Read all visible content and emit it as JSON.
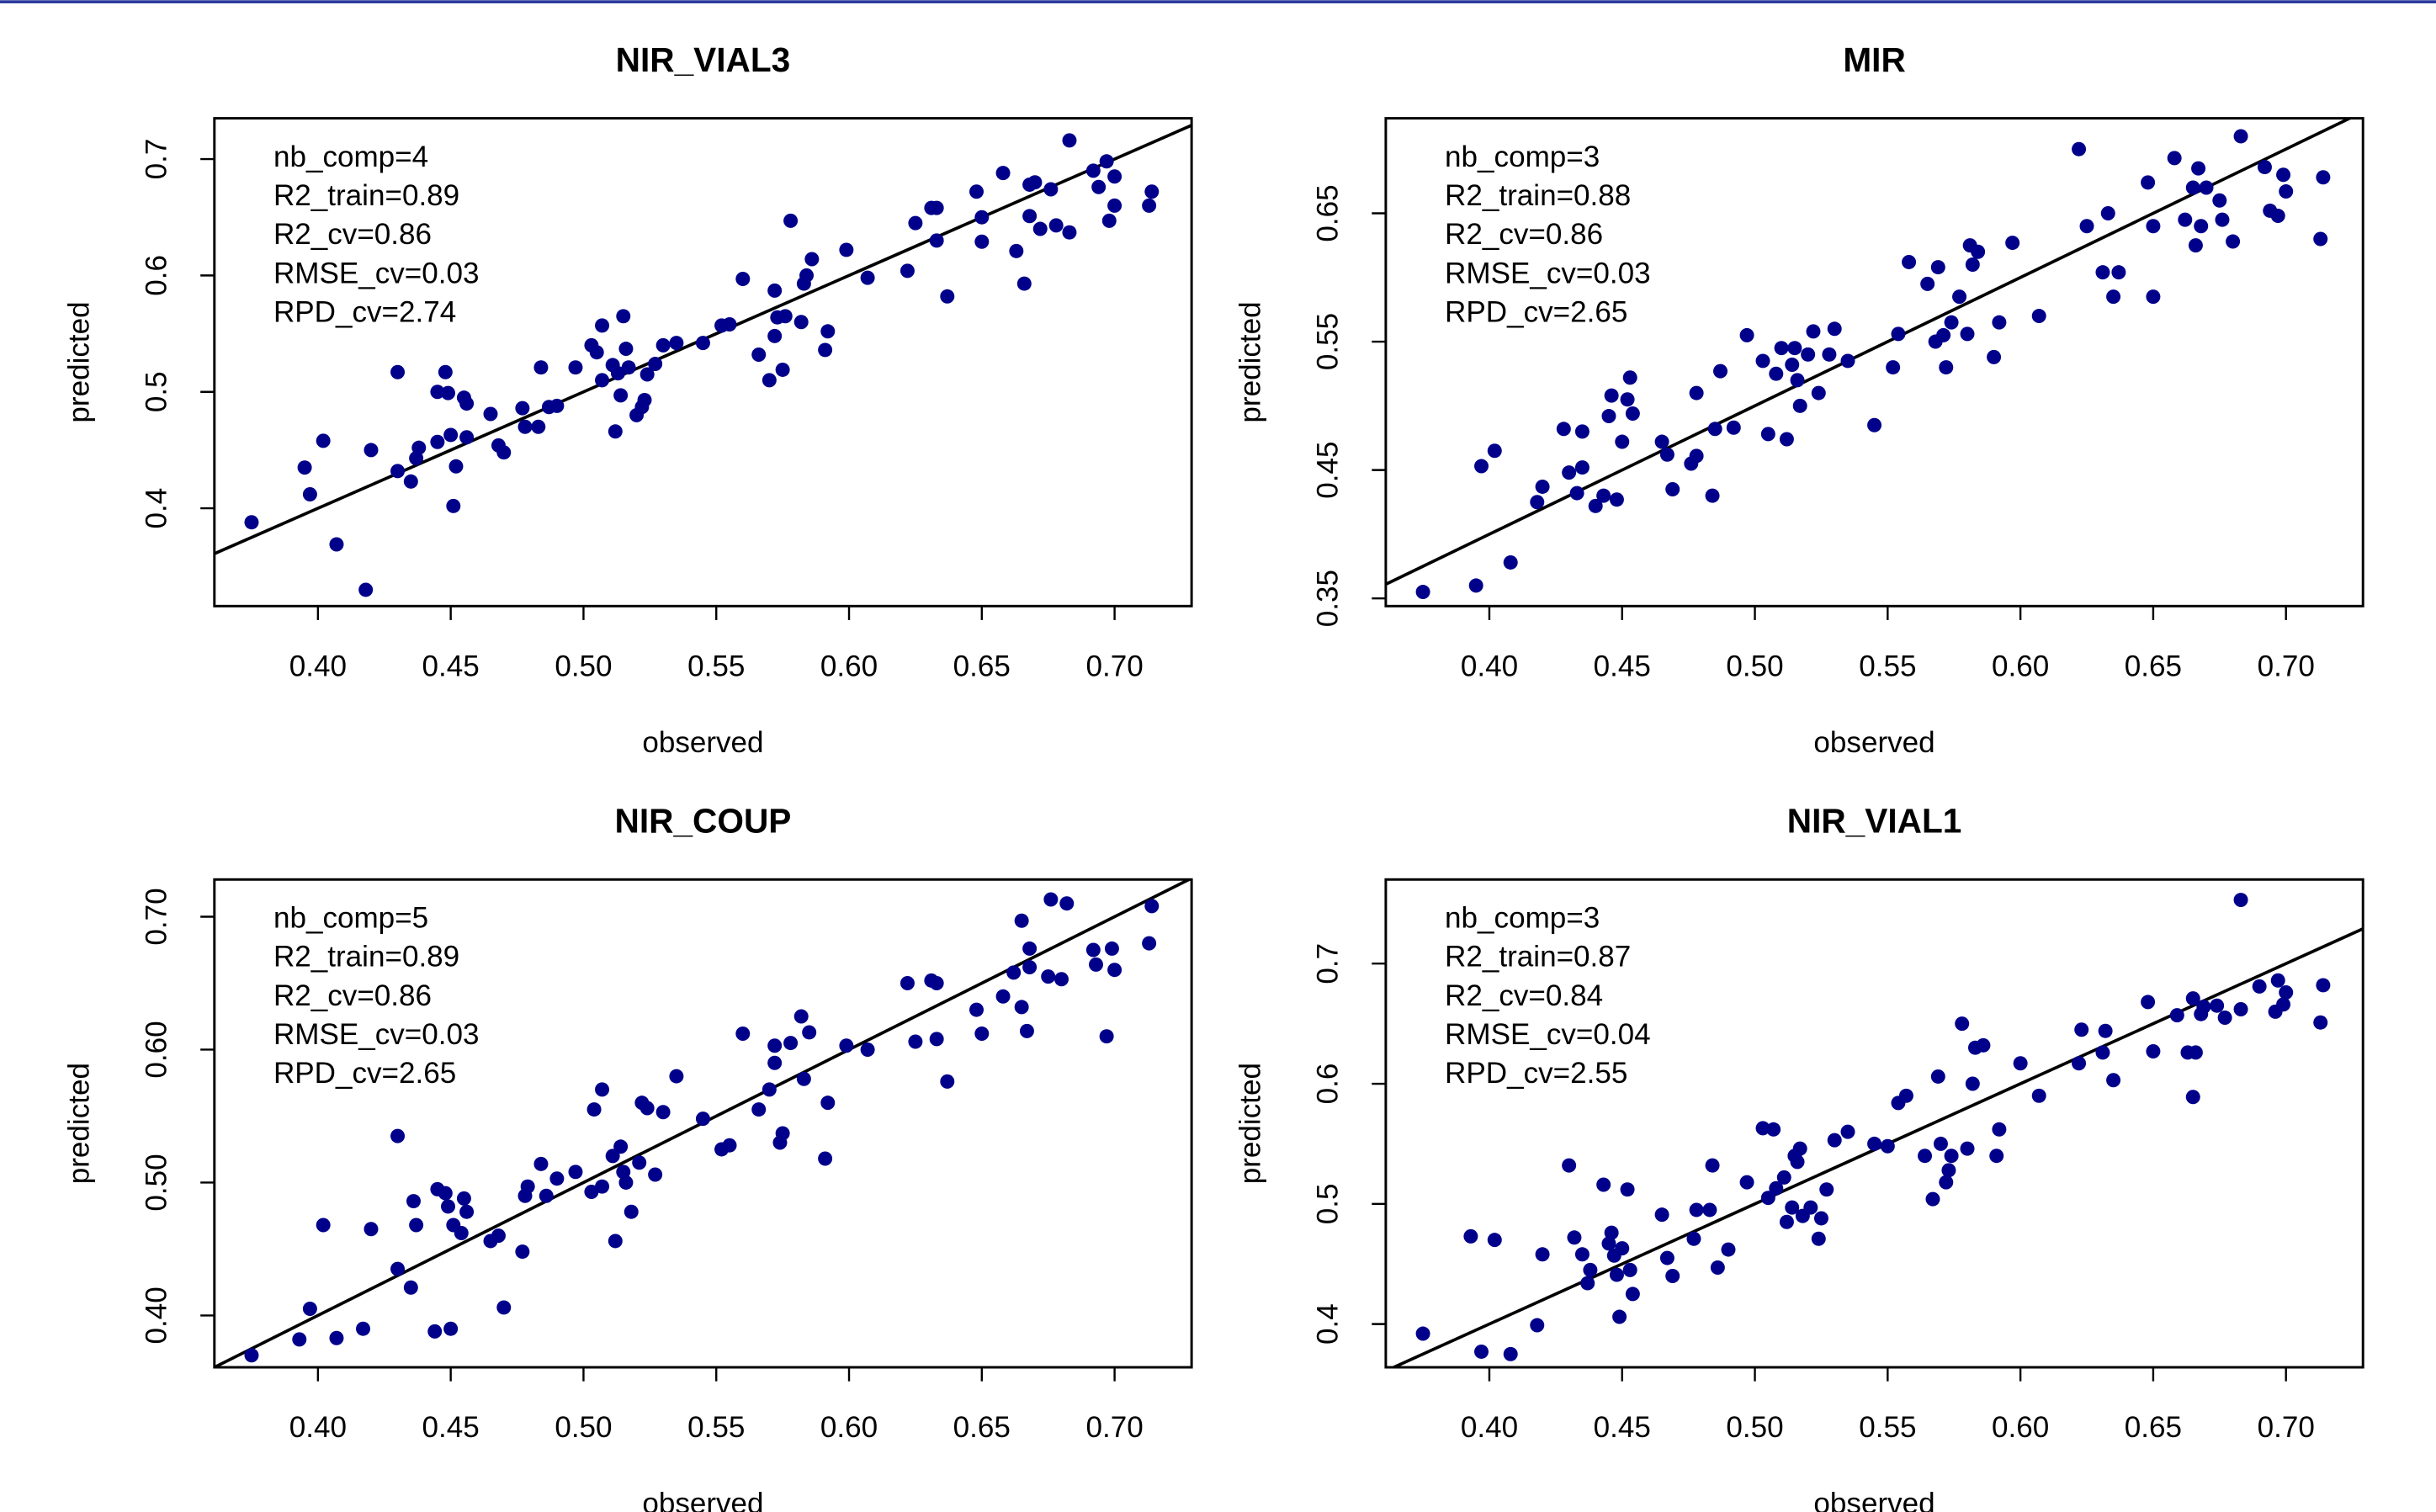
{
  "chart_data": [
    {
      "type": "scatter",
      "title": "NIR_VIAL3",
      "xlabel": "observed",
      "ylabel": "predicted",
      "color": "#00008b",
      "annotations": [
        "nb_comp=4",
        "R2_train=0.89",
        "R2_cv=0.86",
        "RMSE_cv=0.03",
        "RPD_cv=2.74"
      ],
      "reference_line": {
        "slope": 1,
        "intercept": 0
      },
      "xlim": [
        0.361,
        0.729
      ],
      "ylim": [
        0.316,
        0.735
      ],
      "xticks": [
        {
          "value": 0.4,
          "label": "0.40"
        },
        {
          "value": 0.45,
          "label": "0.45"
        },
        {
          "value": 0.5,
          "label": "0.50"
        },
        {
          "value": 0.55,
          "label": "0.55"
        },
        {
          "value": 0.6,
          "label": "0.60"
        },
        {
          "value": 0.65,
          "label": "0.65"
        },
        {
          "value": 0.7,
          "label": "0.70"
        }
      ],
      "yticks": [
        0.4,
        0.5,
        0.6,
        0.7
      ],
      "x": [
        0.375,
        0.395,
        0.397,
        0.402,
        0.407,
        0.418,
        0.42,
        0.43,
        0.43,
        0.435,
        0.437,
        0.438,
        0.445,
        0.445,
        0.448,
        0.449,
        0.45,
        0.451,
        0.452,
        0.455,
        0.456,
        0.456,
        0.465,
        0.468,
        0.47,
        0.477,
        0.478,
        0.483,
        0.484,
        0.487,
        0.49,
        0.497,
        0.503,
        0.505,
        0.507,
        0.507,
        0.511,
        0.512,
        0.513,
        0.514,
        0.515,
        0.516,
        0.517,
        0.52,
        0.522,
        0.523,
        0.524,
        0.527,
        0.53,
        0.535,
        0.545,
        0.552,
        0.555,
        0.56,
        0.566,
        0.57,
        0.572,
        0.572,
        0.573,
        0.575,
        0.576,
        0.578,
        0.582,
        0.583,
        0.584,
        0.586,
        0.591,
        0.592,
        0.599,
        0.607,
        0.622,
        0.625,
        0.631,
        0.633,
        0.633,
        0.637,
        0.648,
        0.65,
        0.65,
        0.658,
        0.663,
        0.666,
        0.668,
        0.668,
        0.67,
        0.672,
        0.676,
        0.678,
        0.683,
        0.683,
        0.692,
        0.694,
        0.697,
        0.698,
        0.7,
        0.7,
        0.713,
        0.714
      ],
      "values": [
        0.388,
        0.435,
        0.412,
        0.458,
        0.369,
        0.33,
        0.45,
        0.517,
        0.432,
        0.423,
        0.443,
        0.452,
        0.457,
        0.5,
        0.517,
        0.499,
        0.463,
        0.402,
        0.436,
        0.495,
        0.49,
        0.461,
        0.481,
        0.454,
        0.448,
        0.486,
        0.47,
        0.47,
        0.521,
        0.487,
        0.488,
        0.521,
        0.54,
        0.534,
        0.51,
        0.557,
        0.523,
        0.466,
        0.516,
        0.497,
        0.565,
        0.537,
        0.521,
        0.48,
        0.487,
        0.493,
        0.515,
        0.524,
        0.54,
        0.542,
        0.542,
        0.557,
        0.558,
        0.597,
        0.532,
        0.51,
        0.548,
        0.587,
        0.564,
        0.519,
        0.565,
        0.647,
        0.56,
        0.593,
        0.6,
        0.614,
        0.536,
        0.552,
        0.622,
        0.598,
        0.604,
        0.645,
        0.658,
        0.658,
        0.63,
        0.582,
        0.672,
        0.629,
        0.65,
        0.688,
        0.621,
        0.593,
        0.678,
        0.651,
        0.68,
        0.64,
        0.674,
        0.643,
        0.637,
        0.716,
        0.69,
        0.676,
        0.698,
        0.647,
        0.685,
        0.66,
        0.66,
        0.672
      ]
    },
    {
      "type": "scatter",
      "title": "MIR",
      "xlabel": "observed",
      "ylabel": "predicted",
      "color": "#00008b",
      "annotations": [
        "nb_comp=3",
        "R2_train=0.88",
        "R2_cv=0.86",
        "RMSE_cv=0.03",
        "RPD_cv=2.65"
      ],
      "reference_line": {
        "slope": 1,
        "intercept": 0
      },
      "xlim": [
        0.361,
        0.729
      ],
      "ylim": [
        0.344,
        0.724
      ],
      "xticks": [
        {
          "value": 0.4,
          "label": "0.40"
        },
        {
          "value": 0.45,
          "label": "0.45"
        },
        {
          "value": 0.5,
          "label": "0.50"
        },
        {
          "value": 0.55,
          "label": "0.55"
        },
        {
          "value": 0.6,
          "label": "0.60"
        },
        {
          "value": 0.65,
          "label": "0.65"
        },
        {
          "value": 0.7,
          "label": "0.70"
        }
      ],
      "yticks": [
        0.35,
        0.45,
        0.55,
        0.65
      ],
      "x": [
        0.375,
        0.395,
        0.397,
        0.402,
        0.408,
        0.418,
        0.42,
        0.428,
        0.43,
        0.433,
        0.435,
        0.435,
        0.44,
        0.443,
        0.445,
        0.446,
        0.448,
        0.45,
        0.452,
        0.453,
        0.454,
        0.465,
        0.467,
        0.469,
        0.476,
        0.478,
        0.478,
        0.484,
        0.485,
        0.487,
        0.492,
        0.497,
        0.503,
        0.505,
        0.508,
        0.51,
        0.512,
        0.514,
        0.515,
        0.516,
        0.517,
        0.52,
        0.522,
        0.524,
        0.528,
        0.53,
        0.535,
        0.545,
        0.552,
        0.554,
        0.558,
        0.565,
        0.568,
        0.569,
        0.571,
        0.572,
        0.574,
        0.577,
        0.58,
        0.581,
        0.582,
        0.584,
        0.59,
        0.592,
        0.597,
        0.607,
        0.622,
        0.625,
        0.631,
        0.633,
        0.635,
        0.637,
        0.648,
        0.65,
        0.65,
        0.658,
        0.662,
        0.665,
        0.666,
        0.667,
        0.668,
        0.67,
        0.675,
        0.676,
        0.68,
        0.683,
        0.692,
        0.694,
        0.697,
        0.699,
        0.7,
        0.713,
        0.714
      ],
      "values": [
        0.355,
        0.36,
        0.453,
        0.465,
        0.378,
        0.425,
        0.437,
        0.482,
        0.448,
        0.432,
        0.48,
        0.452,
        0.422,
        0.43,
        0.492,
        0.508,
        0.427,
        0.472,
        0.505,
        0.522,
        0.494,
        0.472,
        0.462,
        0.435,
        0.455,
        0.461,
        0.51,
        0.43,
        0.482,
        0.527,
        0.483,
        0.555,
        0.535,
        0.478,
        0.525,
        0.545,
        0.474,
        0.532,
        0.545,
        0.52,
        0.5,
        0.54,
        0.558,
        0.51,
        0.54,
        0.56,
        0.535,
        0.485,
        0.53,
        0.556,
        0.612,
        0.595,
        0.55,
        0.608,
        0.555,
        0.53,
        0.565,
        0.585,
        0.556,
        0.625,
        0.61,
        0.62,
        0.538,
        0.565,
        0.627,
        0.57,
        0.7,
        0.64,
        0.604,
        0.65,
        0.585,
        0.604,
        0.674,
        0.64,
        0.585,
        0.693,
        0.645,
        0.67,
        0.625,
        0.685,
        0.64,
        0.67,
        0.66,
        0.645,
        0.628,
        0.71,
        0.686,
        0.652,
        0.648,
        0.68,
        0.667,
        0.63,
        0.678
      ]
    },
    {
      "type": "scatter",
      "title": "NIR_COUP",
      "xlabel": "observed",
      "ylabel": "predicted",
      "color": "#00008b",
      "annotations": [
        "nb_comp=5",
        "R2_train=0.89",
        "R2_cv=0.86",
        "RMSE_cv=0.03",
        "RPD_cv=2.65"
      ],
      "reference_line": {
        "slope": 1,
        "intercept": 0
      },
      "xlim": [
        0.361,
        0.729
      ],
      "ylim": [
        0.361,
        0.728
      ],
      "xticks": [
        {
          "value": 0.4,
          "label": "0.40"
        },
        {
          "value": 0.45,
          "label": "0.45"
        },
        {
          "value": 0.5,
          "label": "0.50"
        },
        {
          "value": 0.55,
          "label": "0.55"
        },
        {
          "value": 0.6,
          "label": "0.60"
        },
        {
          "value": 0.65,
          "label": "0.65"
        },
        {
          "value": 0.7,
          "label": "0.70"
        }
      ],
      "yticks": [
        {
          "value": 0.4,
          "label": "0.40"
        },
        {
          "value": 0.5,
          "label": "0.50"
        },
        {
          "value": 0.6,
          "label": "0.60"
        },
        {
          "value": 0.7,
          "label": "0.70"
        }
      ],
      "x": [
        0.375,
        0.393,
        0.397,
        0.402,
        0.407,
        0.417,
        0.42,
        0.43,
        0.43,
        0.435,
        0.436,
        0.437,
        0.444,
        0.445,
        0.448,
        0.449,
        0.45,
        0.451,
        0.454,
        0.455,
        0.456,
        0.465,
        0.468,
        0.47,
        0.477,
        0.478,
        0.479,
        0.484,
        0.486,
        0.49,
        0.497,
        0.503,
        0.504,
        0.507,
        0.507,
        0.511,
        0.512,
        0.514,
        0.515,
        0.516,
        0.518,
        0.521,
        0.522,
        0.524,
        0.527,
        0.53,
        0.535,
        0.545,
        0.552,
        0.555,
        0.56,
        0.566,
        0.57,
        0.572,
        0.572,
        0.574,
        0.575,
        0.578,
        0.582,
        0.583,
        0.585,
        0.591,
        0.592,
        0.599,
        0.607,
        0.622,
        0.625,
        0.631,
        0.633,
        0.633,
        0.637,
        0.648,
        0.65,
        0.658,
        0.662,
        0.665,
        0.665,
        0.667,
        0.668,
        0.668,
        0.675,
        0.676,
        0.68,
        0.682,
        0.692,
        0.693,
        0.697,
        0.699,
        0.7,
        0.713,
        0.714
      ],
      "values": [
        0.37,
        0.382,
        0.405,
        0.468,
        0.383,
        0.39,
        0.465,
        0.535,
        0.435,
        0.421,
        0.486,
        0.468,
        0.388,
        0.495,
        0.492,
        0.482,
        0.39,
        0.468,
        0.462,
        0.488,
        0.478,
        0.456,
        0.46,
        0.406,
        0.448,
        0.49,
        0.497,
        0.514,
        0.49,
        0.503,
        0.508,
        0.493,
        0.555,
        0.57,
        0.497,
        0.52,
        0.456,
        0.527,
        0.508,
        0.5,
        0.478,
        0.515,
        0.56,
        0.556,
        0.506,
        0.553,
        0.58,
        0.548,
        0.525,
        0.528,
        0.612,
        0.555,
        0.57,
        0.59,
        0.603,
        0.53,
        0.537,
        0.605,
        0.625,
        0.578,
        0.613,
        0.518,
        0.56,
        0.603,
        0.6,
        0.65,
        0.606,
        0.652,
        0.65,
        0.608,
        0.576,
        0.63,
        0.612,
        0.64,
        0.658,
        0.632,
        0.697,
        0.614,
        0.662,
        0.676,
        0.655,
        0.713,
        0.653,
        0.71,
        0.675,
        0.664,
        0.61,
        0.676,
        0.66,
        0.68,
        0.708
      ]
    },
    {
      "type": "scatter",
      "title": "NIR_VIAL1",
      "xlabel": "observed",
      "ylabel": "predicted",
      "color": "#00008b",
      "annotations": [
        "nb_comp=3",
        "R2_train=0.87",
        "R2_cv=0.84",
        "RMSE_cv=0.04",
        "RPD_cv=2.55"
      ],
      "reference_line": {
        "slope": 1,
        "intercept": 0
      },
      "xlim": [
        0.361,
        0.729
      ],
      "ylim": [
        0.364,
        0.77
      ],
      "xticks": [
        {
          "value": 0.4,
          "label": "0.40"
        },
        {
          "value": 0.45,
          "label": "0.45"
        },
        {
          "value": 0.5,
          "label": "0.50"
        },
        {
          "value": 0.55,
          "label": "0.55"
        },
        {
          "value": 0.6,
          "label": "0.60"
        },
        {
          "value": 0.65,
          "label": "0.65"
        },
        {
          "value": 0.7,
          "label": "0.70"
        }
      ],
      "yticks": [
        0.4,
        0.5,
        0.6,
        0.7
      ],
      "x": [
        0.375,
        0.393,
        0.397,
        0.402,
        0.408,
        0.418,
        0.42,
        0.43,
        0.432,
        0.435,
        0.437,
        0.438,
        0.443,
        0.445,
        0.446,
        0.447,
        0.448,
        0.449,
        0.45,
        0.452,
        0.453,
        0.454,
        0.465,
        0.467,
        0.469,
        0.477,
        0.478,
        0.483,
        0.484,
        0.486,
        0.49,
        0.497,
        0.503,
        0.505,
        0.507,
        0.508,
        0.511,
        0.512,
        0.514,
        0.515,
        0.516,
        0.517,
        0.518,
        0.521,
        0.524,
        0.525,
        0.527,
        0.53,
        0.535,
        0.545,
        0.55,
        0.554,
        0.557,
        0.564,
        0.567,
        0.569,
        0.57,
        0.572,
        0.573,
        0.574,
        0.578,
        0.58,
        0.582,
        0.583,
        0.586,
        0.591,
        0.592,
        0.6,
        0.607,
        0.622,
        0.623,
        0.631,
        0.632,
        0.635,
        0.648,
        0.65,
        0.659,
        0.663,
        0.665,
        0.665,
        0.666,
        0.668,
        0.669,
        0.674,
        0.677,
        0.683,
        0.683,
        0.69,
        0.696,
        0.697,
        0.699,
        0.7,
        0.713,
        0.714
      ],
      "values": [
        0.392,
        0.473,
        0.377,
        0.47,
        0.375,
        0.399,
        0.458,
        0.532,
        0.472,
        0.458,
        0.434,
        0.445,
        0.516,
        0.467,
        0.476,
        0.457,
        0.441,
        0.406,
        0.463,
        0.512,
        0.445,
        0.425,
        0.491,
        0.455,
        0.44,
        0.471,
        0.495,
        0.495,
        0.532,
        0.447,
        0.462,
        0.518,
        0.563,
        0.505,
        0.562,
        0.513,
        0.522,
        0.485,
        0.497,
        0.54,
        0.535,
        0.546,
        0.49,
        0.497,
        0.471,
        0.488,
        0.512,
        0.553,
        0.56,
        0.55,
        0.548,
        0.584,
        0.59,
        0.54,
        0.504,
        0.606,
        0.55,
        0.518,
        0.528,
        0.54,
        0.65,
        0.546,
        0.6,
        0.63,
        0.632,
        0.54,
        0.562,
        0.617,
        0.59,
        0.617,
        0.645,
        0.626,
        0.644,
        0.603,
        0.668,
        0.627,
        0.657,
        0.626,
        0.589,
        0.671,
        0.626,
        0.658,
        0.664,
        0.665,
        0.655,
        0.753,
        0.662,
        0.681,
        0.66,
        0.686,
        0.666,
        0.676,
        0.651,
        0.682
      ]
    }
  ]
}
